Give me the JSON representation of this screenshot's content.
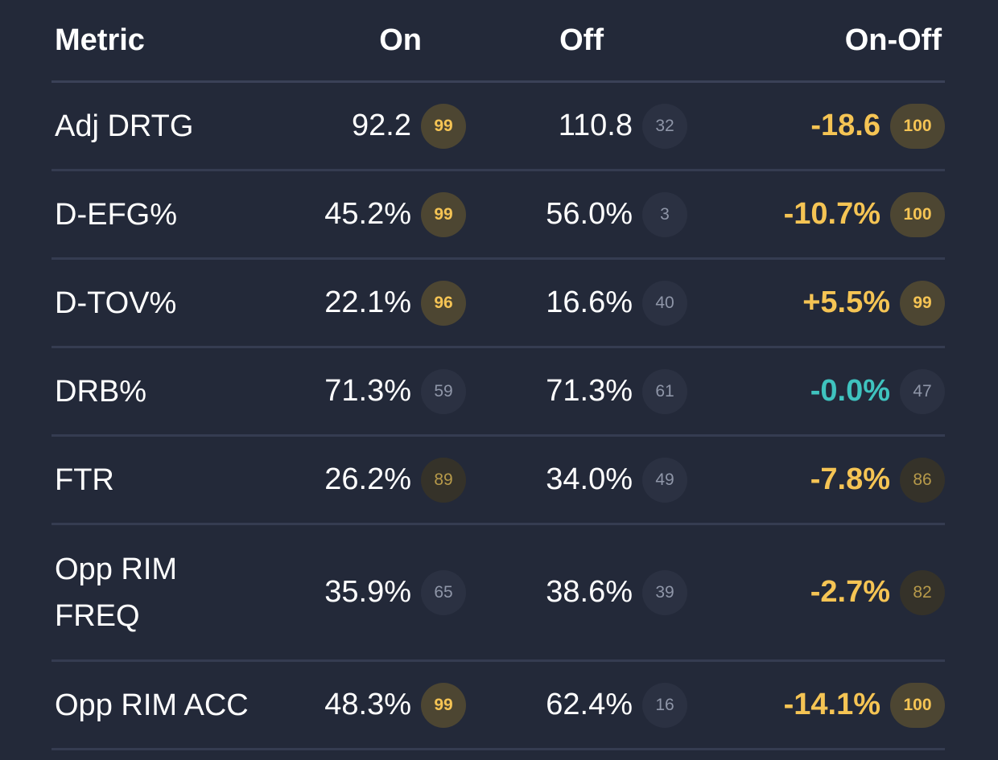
{
  "header": {
    "metric": "Metric",
    "on": "On",
    "off": "Off",
    "on_off": "On-Off"
  },
  "rows": [
    {
      "metric": "Adj DRTG",
      "on": "92.2",
      "on_pct": "99",
      "off": "110.8",
      "off_pct": "32",
      "diff": "-18.6",
      "diff_pct": "100"
    },
    {
      "metric": "D-EFG%",
      "on": "45.2%",
      "on_pct": "99",
      "off": "56.0%",
      "off_pct": "3",
      "diff": "-10.7%",
      "diff_pct": "100"
    },
    {
      "metric": "D-TOV%",
      "on": "22.1%",
      "on_pct": "96",
      "off": "16.6%",
      "off_pct": "40",
      "diff": "+5.5%",
      "diff_pct": "99"
    },
    {
      "metric": "DRB%",
      "on": "71.3%",
      "on_pct": "59",
      "off": "71.3%",
      "off_pct": "61",
      "diff": "-0.0%",
      "diff_pct": "47"
    },
    {
      "metric": "FTR",
      "on": "26.2%",
      "on_pct": "89",
      "off": "34.0%",
      "off_pct": "49",
      "diff": "-7.8%",
      "diff_pct": "86"
    },
    {
      "metric_line1": "Opp RIM",
      "metric_line2": "FREQ",
      "on": "35.9%",
      "on_pct": "65",
      "off": "38.6%",
      "off_pct": "39",
      "diff": "-2.7%",
      "diff_pct": "82"
    },
    {
      "metric": "Opp RIM ACC",
      "on": "48.3%",
      "on_pct": "99",
      "off": "62.4%",
      "off_pct": "16",
      "diff": "-14.1%",
      "diff_pct": "100"
    }
  ],
  "colors": {
    "background": "#232939",
    "highlight": "#f5c454",
    "neutral": "#3fc3bf",
    "divider": "#353c51"
  }
}
